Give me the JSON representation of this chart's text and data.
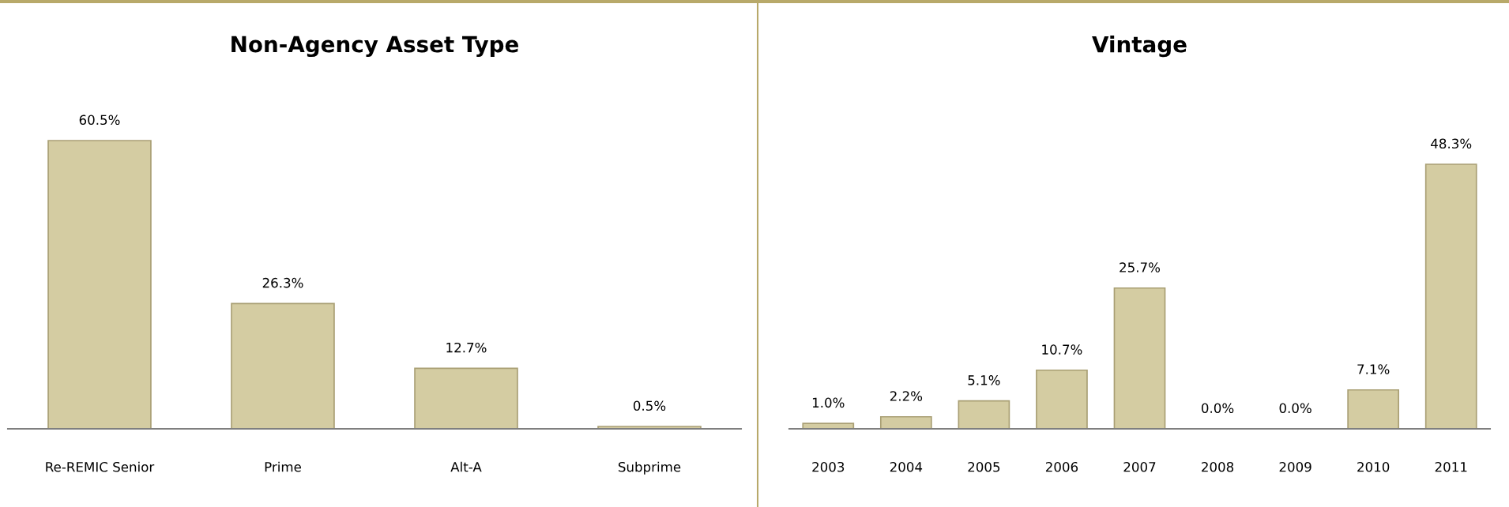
{
  "chart_data": [
    {
      "type": "bar",
      "title": "Non-Agency Asset Type",
      "categories": [
        "Re-REMIC Senior",
        "Prime",
        "Alt-A",
        "Subprime"
      ],
      "values": [
        60.5,
        26.3,
        12.7,
        0.5
      ],
      "value_labels": [
        "60.5%",
        "26.3%",
        "12.7%",
        "0.5%"
      ],
      "color": "#d4cca2",
      "grid": false,
      "legend": false,
      "tick_labels": "x"
    },
    {
      "type": "bar",
      "title": "Vintage",
      "categories": [
        "2003",
        "2004",
        "2005",
        "2006",
        "2007",
        "2008",
        "2009",
        "2010",
        "2011"
      ],
      "values": [
        1.0,
        2.2,
        5.1,
        10.7,
        25.7,
        0.0,
        0.0,
        7.1,
        48.3
      ],
      "value_labels": [
        "1.0%",
        "2.2%",
        "5.1%",
        "10.7%",
        "25.7%",
        "0.0%",
        "0.0%",
        "7.1%",
        "48.3%"
      ],
      "color": "#d4cca2",
      "grid": false,
      "legend": false,
      "tick_labels": "x"
    }
  ]
}
